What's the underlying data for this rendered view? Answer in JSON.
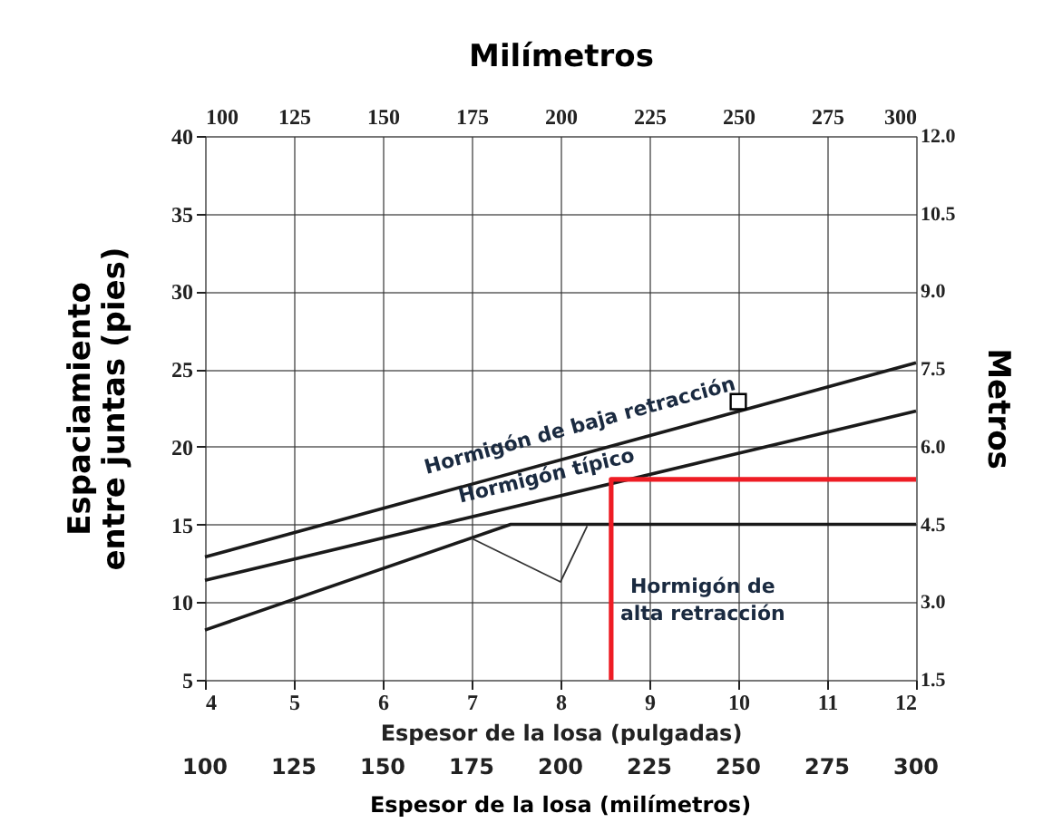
{
  "chart_data": {
    "type": "line",
    "xlabel": "Espesor de la losa (pulgadas)",
    "ylabel": "Espaciamiento entre juntas (pies)",
    "y2label": "Metros",
    "x2label": "Milímetros",
    "annotations": [
      "100",
      "125",
      "150",
      "175",
      "200",
      "225",
      "250",
      "275",
      "300",
      "Espesor de la losa (milímetros)"
    ],
    "xlim": [
      4,
      12
    ],
    "xticks": [
      4,
      5,
      6,
      7,
      8,
      9,
      10,
      11,
      12
    ],
    "ylim": [
      5,
      40
    ],
    "yticks": [
      5,
      10,
      15,
      20,
      25,
      30,
      35,
      40
    ],
    "y2lim": [
      1.5,
      12
    ],
    "y2ticks": [
      1.5,
      {
        "value": 3,
        "label": "3.0"
      },
      4.5,
      {
        "value": 6,
        "label": "6.0"
      },
      7.5,
      {
        "value": 9,
        "label": "9.0"
      },
      10.5,
      {
        "value": 12,
        "label": "12.0"
      }
    ],
    "x2lim": [
      100,
      300
    ],
    "x2ticks": [
      100,
      125,
      150,
      175,
      200,
      225,
      250,
      275,
      300
    ],
    "grid": true,
    "marker": "none",
    "line_style": "solid",
    "series": [
      {
        "name": "Hormigón de baja retracción",
        "color": "#1a1a1a",
        "x": [
          4,
          12
        ],
        "values": [
          12.9,
          25.4
        ]
      },
      {
        "name": "Hormigón típico",
        "color": "#1a1a1a",
        "x": [
          4,
          12
        ],
        "values": [
          11.4,
          22.3
        ]
      },
      {
        "name": "Hormigón de alta retracción",
        "color": "#1a1a1a",
        "x": [
          4,
          7.44,
          12
        ],
        "values": [
          8.2,
          15,
          15
        ]
      },
      {
        "color": "#ee1c24",
        "x": [
          8.57,
          8.57,
          12
        ],
        "values": [
          5,
          17.9,
          17.9
        ]
      },
      {
        "type": "scatter",
        "marker": "square",
        "color": "#000000",
        "x": [
          10
        ],
        "values": [
          22.9
        ]
      },
      {
        "color": "#333333",
        "x": [
          7,
          8,
          8.3
        ],
        "values": [
          14.1,
          11.3,
          14.9
        ]
      }
    ]
  }
}
